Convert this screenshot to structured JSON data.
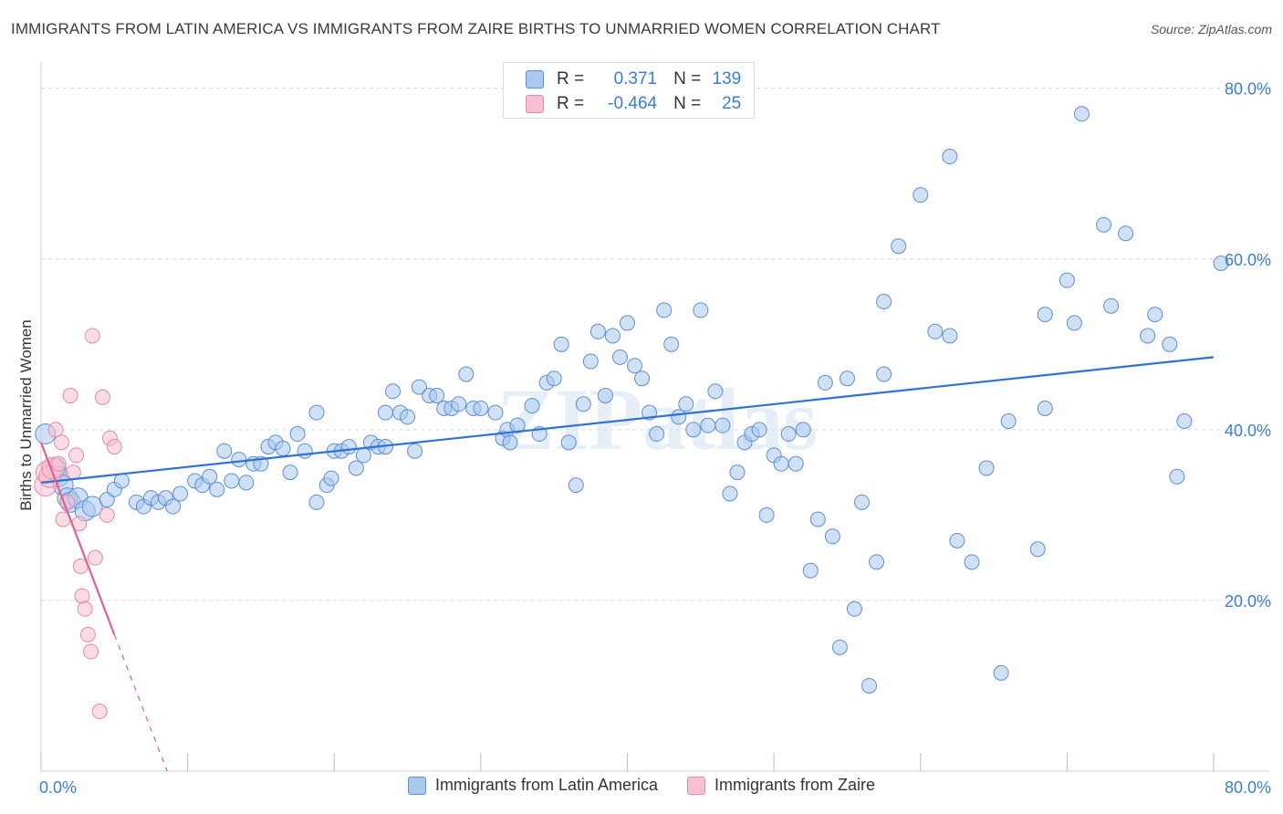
{
  "title": "IMMIGRANTS FROM LATIN AMERICA VS IMMIGRANTS FROM ZAIRE BIRTHS TO UNMARRIED WOMEN CORRELATION CHART",
  "source": "Source: ZipAtlas.com",
  "watermark": "ZIPatlas",
  "legend": {
    "r_label": "R =",
    "n_label": "N =",
    "series1": {
      "r": "0.371",
      "n": "139"
    },
    "series2": {
      "r": "-0.464",
      "n": "25"
    }
  },
  "colors": {
    "blue_fill": "#a9c8ee",
    "blue_stroke": "#5b8fd6",
    "blue_line": "#2e72d2",
    "pink_fill": "#f7bfd0",
    "pink_stroke": "#e58aa8",
    "pink_line": "#e0608e",
    "tick_text": "#3b7dd8",
    "grid": "#d6d6d6"
  },
  "chart_data": {
    "type": "scatter",
    "title": "IMMIGRANTS FROM LATIN AMERICA VS IMMIGRANTS FROM ZAIRE BIRTHS TO UNMARRIED WOMEN CORRELATION CHART",
    "xlabel": "",
    "ylabel": "Births to Unmarried Women",
    "xlim": [
      0,
      80
    ],
    "ylim": [
      0,
      82
    ],
    "x_tick_labels": [
      "0.0%",
      "80.0%"
    ],
    "y_ticks": [
      20,
      40,
      60,
      80
    ],
    "y_tick_labels": [
      "20.0%",
      "40.0%",
      "60.0%",
      "80.0%"
    ],
    "series": [
      {
        "name": "Immigrants from Latin America",
        "color": "blue",
        "trend": {
          "x": [
            0,
            80
          ],
          "y": [
            33.8,
            48.5
          ],
          "dashed_to": null
        },
        "points": [
          [
            0.3,
            39.5
          ],
          [
            1.0,
            35.5
          ],
          [
            1.2,
            34.5
          ],
          [
            1.5,
            33.5
          ],
          [
            1.8,
            32
          ],
          [
            2.0,
            31.5
          ],
          [
            2.5,
            32
          ],
          [
            3.0,
            30.5
          ],
          [
            3.5,
            31
          ],
          [
            4.5,
            31.8
          ],
          [
            5.0,
            33
          ],
          [
            5.5,
            34
          ],
          [
            6.5,
            31.5
          ],
          [
            7.0,
            31
          ],
          [
            7.5,
            32
          ],
          [
            8.0,
            31.5
          ],
          [
            8.5,
            32
          ],
          [
            9.0,
            31
          ],
          [
            9.5,
            32.5
          ],
          [
            10.5,
            34
          ],
          [
            11.0,
            33.5
          ],
          [
            11.5,
            34.5
          ],
          [
            12.0,
            33
          ],
          [
            12.5,
            37.5
          ],
          [
            13.0,
            34
          ],
          [
            13.5,
            36.5
          ],
          [
            14.0,
            33.8
          ],
          [
            14.5,
            36
          ],
          [
            15.0,
            36
          ],
          [
            15.5,
            38
          ],
          [
            16.0,
            38.5
          ],
          [
            16.5,
            37.8
          ],
          [
            17.0,
            35
          ],
          [
            17.5,
            39.5
          ],
          [
            18.0,
            37.5
          ],
          [
            18.8,
            42
          ],
          [
            18.8,
            31.5
          ],
          [
            19.5,
            33.5
          ],
          [
            19.8,
            34.3
          ],
          [
            20.0,
            37.5
          ],
          [
            20.5,
            37.5
          ],
          [
            21.0,
            38
          ],
          [
            21.5,
            35.5
          ],
          [
            22.0,
            37
          ],
          [
            22.5,
            38.5
          ],
          [
            23.0,
            38
          ],
          [
            23.5,
            38
          ],
          [
            23.5,
            42
          ],
          [
            24.0,
            44.5
          ],
          [
            24.5,
            42
          ],
          [
            25.0,
            41.5
          ],
          [
            25.5,
            37.5
          ],
          [
            25.8,
            45
          ],
          [
            26.5,
            44
          ],
          [
            27.0,
            44
          ],
          [
            27.5,
            42.5
          ],
          [
            28.0,
            42.5
          ],
          [
            28.5,
            43
          ],
          [
            29.0,
            46.5
          ],
          [
            29.5,
            42.5
          ],
          [
            30.0,
            42.5
          ],
          [
            31.0,
            42
          ],
          [
            31.5,
            39
          ],
          [
            31.8,
            40
          ],
          [
            32.0,
            38.5
          ],
          [
            32.5,
            40.5
          ],
          [
            33.5,
            42.8
          ],
          [
            34.0,
            39.5
          ],
          [
            34.5,
            45.5
          ],
          [
            35.0,
            46
          ],
          [
            35.5,
            50
          ],
          [
            36.0,
            38.5
          ],
          [
            36.5,
            33.5
          ],
          [
            37.0,
            43
          ],
          [
            37.5,
            48
          ],
          [
            38.0,
            51.5
          ],
          [
            38.5,
            44
          ],
          [
            39.0,
            51
          ],
          [
            39.5,
            48.5
          ],
          [
            40.0,
            52.5
          ],
          [
            40.5,
            47.5
          ],
          [
            41.0,
            46
          ],
          [
            41.5,
            42
          ],
          [
            42.0,
            39.5
          ],
          [
            42.5,
            54
          ],
          [
            43.0,
            50
          ],
          [
            43.5,
            41.5
          ],
          [
            44.0,
            43
          ],
          [
            44.5,
            40
          ],
          [
            45.0,
            54
          ],
          [
            45.5,
            40.5
          ],
          [
            46.0,
            44.5
          ],
          [
            46.5,
            40.5
          ],
          [
            47.0,
            32.5
          ],
          [
            47.5,
            35
          ],
          [
            48.0,
            38.5
          ],
          [
            48.5,
            39.5
          ],
          [
            49.0,
            40
          ],
          [
            49.5,
            30
          ],
          [
            50.0,
            37
          ],
          [
            50.5,
            36
          ],
          [
            51.0,
            39.5
          ],
          [
            51.5,
            36
          ],
          [
            52.0,
            40
          ],
          [
            52.5,
            23.5
          ],
          [
            53.0,
            29.5
          ],
          [
            53.5,
            45.5
          ],
          [
            54.0,
            27.5
          ],
          [
            54.5,
            14.5
          ],
          [
            55.0,
            46
          ],
          [
            55.5,
            19
          ],
          [
            56.0,
            31.5
          ],
          [
            56.5,
            10
          ],
          [
            57.0,
            24.5
          ],
          [
            57.5,
            46.5
          ],
          [
            57.5,
            55
          ],
          [
            58.5,
            61.5
          ],
          [
            60.0,
            67.5
          ],
          [
            61.0,
            51.5
          ],
          [
            62.0,
            51
          ],
          [
            62.0,
            72
          ],
          [
            62.5,
            27
          ],
          [
            63.5,
            24.5
          ],
          [
            64.5,
            35.5
          ],
          [
            65.5,
            11.5
          ],
          [
            66.0,
            41
          ],
          [
            68.0,
            26
          ],
          [
            68.5,
            42.5
          ],
          [
            68.5,
            53.5
          ],
          [
            70.0,
            57.5
          ],
          [
            70.5,
            52.5
          ],
          [
            71.0,
            77
          ],
          [
            72.5,
            64
          ],
          [
            73.0,
            54.5
          ],
          [
            74.0,
            63
          ],
          [
            75.5,
            51
          ],
          [
            76.0,
            53.5
          ],
          [
            77.0,
            50
          ],
          [
            77.5,
            34.5
          ],
          [
            78.0,
            41
          ],
          [
            80.5,
            59.5
          ]
        ]
      },
      {
        "name": "Immigrants from Zaire",
        "color": "pink",
        "trend": {
          "x": [
            0,
            5
          ],
          "y": [
            38.5,
            16.0
          ],
          "dashed_to": [
            8.6,
            0
          ]
        },
        "points": [
          [
            0.3,
            33.5
          ],
          [
            0.4,
            35
          ],
          [
            0.6,
            34.5
          ],
          [
            0.8,
            35.5
          ],
          [
            1.0,
            40
          ],
          [
            1.2,
            36
          ],
          [
            1.4,
            38.5
          ],
          [
            1.5,
            29.5
          ],
          [
            1.8,
            31.5
          ],
          [
            2.0,
            44
          ],
          [
            2.2,
            35
          ],
          [
            2.4,
            37
          ],
          [
            2.6,
            29
          ],
          [
            2.7,
            24
          ],
          [
            2.8,
            20.5
          ],
          [
            3.0,
            19
          ],
          [
            3.2,
            16
          ],
          [
            3.4,
            14
          ],
          [
            3.5,
            51
          ],
          [
            3.7,
            25
          ],
          [
            4.0,
            7
          ],
          [
            4.2,
            43.8
          ],
          [
            4.5,
            30
          ],
          [
            4.7,
            39
          ],
          [
            5.0,
            38
          ]
        ]
      }
    ]
  }
}
